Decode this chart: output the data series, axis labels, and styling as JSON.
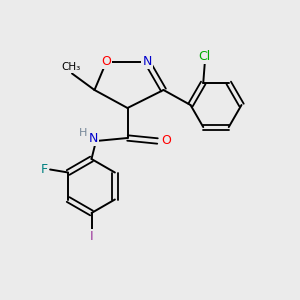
{
  "background_color": "#ebebeb",
  "bond_color": "#000000",
  "atom_colors": {
    "O": "#ff0000",
    "N": "#0000cc",
    "Cl": "#00aa00",
    "F": "#008080",
    "I": "#993399",
    "H": "#778899",
    "C": "#000000"
  }
}
